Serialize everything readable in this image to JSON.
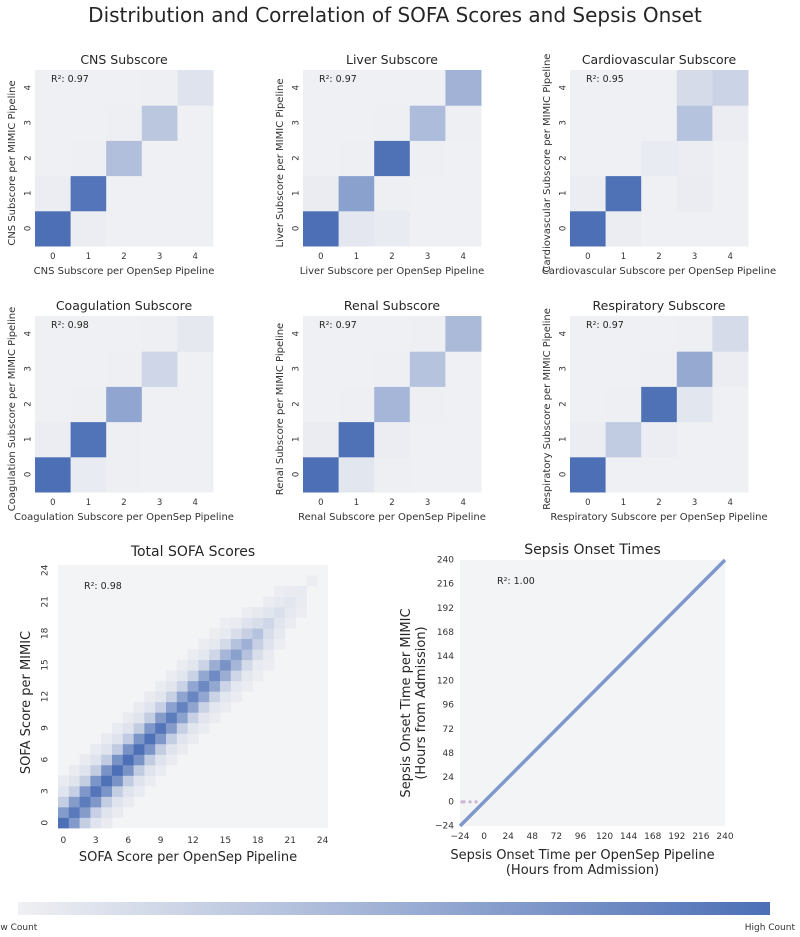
{
  "figure": {
    "suptitle": "Distribution and Correlation of SOFA Scores and Sepsis Onset",
    "colormap": {
      "low": "#eff0f3",
      "high": "#4c6fb6",
      "grid": "#f3f4f6"
    },
    "colorbar": {
      "low_label": "Low Count",
      "high_label": "High Count"
    }
  },
  "chart_data": [
    {
      "type": "heatmap",
      "id": "cns",
      "title": "CNS Subscore",
      "xlabel": "CNS Subscore per OpenSep Pipeline",
      "ylabel": "CNS Subscore per MIMIC Pipeline",
      "annotation": "R²: 0.97",
      "x_ticks": [
        "0",
        "1",
        "2",
        "3",
        "4"
      ],
      "y_ticks": [
        "0",
        "1",
        "2",
        "3",
        "4"
      ],
      "matrix": [
        [
          1.0,
          0.02,
          0.0,
          0.0,
          0.0
        ],
        [
          0.02,
          0.95,
          0.0,
          0.0,
          0.0
        ],
        [
          0.0,
          0.01,
          0.38,
          0.0,
          0.0
        ],
        [
          0.0,
          0.0,
          0.01,
          0.32,
          0.0
        ],
        [
          0.0,
          0.0,
          0.0,
          0.01,
          0.1
        ]
      ]
    },
    {
      "type": "heatmap",
      "id": "liver",
      "title": "Liver Subscore",
      "xlabel": "Liver Subscore per OpenSep Pipeline",
      "ylabel": "Liver Subscore per MIMIC Pipeline",
      "annotation": "R²: 0.97",
      "x_ticks": [
        "0",
        "1",
        "2",
        "3",
        "4"
      ],
      "y_ticks": [
        "0",
        "1",
        "2",
        "3",
        "4"
      ],
      "matrix": [
        [
          1.0,
          0.07,
          0.04,
          0.0,
          0.0
        ],
        [
          0.03,
          0.62,
          0.01,
          0.0,
          0.0
        ],
        [
          0.0,
          0.01,
          0.98,
          0.01,
          0.0
        ],
        [
          0.0,
          0.0,
          0.01,
          0.4,
          0.01
        ],
        [
          0.0,
          0.0,
          0.0,
          0.0,
          0.48
        ]
      ]
    },
    {
      "type": "heatmap",
      "id": "cardio",
      "title": "Cardiovascular Subscore",
      "xlabel": "Cardiovascular Subscore per OpenSep Pipeline",
      "ylabel": "Cardiovascular Subscore per MIMIC Pipeline",
      "annotation": "R²: 0.95",
      "x_ticks": [
        "0",
        "1",
        "2",
        "3",
        "4"
      ],
      "y_ticks": [
        "0",
        "1",
        "2",
        "3",
        "4"
      ],
      "matrix": [
        [
          1.0,
          0.02,
          0.0,
          0.0,
          0.0
        ],
        [
          0.02,
          0.98,
          0.0,
          0.03,
          0.0
        ],
        [
          0.0,
          0.0,
          0.04,
          0.02,
          0.0
        ],
        [
          0.0,
          0.0,
          0.0,
          0.35,
          0.02
        ],
        [
          0.0,
          0.0,
          0.0,
          0.16,
          0.22
        ]
      ]
    },
    {
      "type": "heatmap",
      "id": "coag",
      "title": "Coagulation Subscore",
      "xlabel": "Coagulation Subscore per OpenSep Pipeline",
      "ylabel": "Coagulation Subscore per MIMIC Pipeline",
      "annotation": "R²: 0.98",
      "x_ticks": [
        "0",
        "1",
        "2",
        "3",
        "4"
      ],
      "y_ticks": [
        "0",
        "1",
        "2",
        "3",
        "4"
      ],
      "matrix": [
        [
          1.0,
          0.04,
          0.01,
          0.0,
          0.0
        ],
        [
          0.02,
          0.97,
          0.01,
          0.0,
          0.0
        ],
        [
          0.0,
          0.01,
          0.58,
          0.0,
          0.0
        ],
        [
          0.0,
          0.0,
          0.01,
          0.2,
          0.0
        ],
        [
          0.0,
          0.0,
          0.0,
          0.01,
          0.06
        ]
      ]
    },
    {
      "type": "heatmap",
      "id": "renal",
      "title": "Renal Subscore",
      "xlabel": "Renal Subscore per OpenSep Pipeline",
      "ylabel": "Renal Subscore per MIMIC Pipeline",
      "annotation": "R²: 0.97",
      "x_ticks": [
        "0",
        "1",
        "2",
        "3",
        "4"
      ],
      "y_ticks": [
        "0",
        "1",
        "2",
        "3",
        "4"
      ],
      "matrix": [
        [
          1.0,
          0.08,
          0.01,
          0.0,
          0.0
        ],
        [
          0.03,
          0.98,
          0.02,
          0.0,
          0.0
        ],
        [
          0.0,
          0.01,
          0.45,
          0.01,
          0.0
        ],
        [
          0.0,
          0.0,
          0.01,
          0.35,
          0.0
        ],
        [
          0.0,
          0.0,
          0.0,
          0.01,
          0.42
        ]
      ]
    },
    {
      "type": "heatmap",
      "id": "resp",
      "title": "Respiratory Subscore",
      "xlabel": "Respiratory Subscore per OpenSep Pipeline",
      "ylabel": "Respiratory Subscore per MIMIC Pipeline",
      "annotation": "R²: 0.97",
      "x_ticks": [
        "0",
        "1",
        "2",
        "3",
        "4"
      ],
      "y_ticks": [
        "0",
        "1",
        "2",
        "3",
        "4"
      ],
      "matrix": [
        [
          1.0,
          0.0,
          0.0,
          0.0,
          0.0
        ],
        [
          0.02,
          0.28,
          0.02,
          0.0,
          0.0
        ],
        [
          0.0,
          0.01,
          0.98,
          0.08,
          0.0
        ],
        [
          0.0,
          0.0,
          0.01,
          0.55,
          0.02
        ],
        [
          0.0,
          0.0,
          0.0,
          0.01,
          0.16
        ]
      ]
    },
    {
      "type": "heatmap",
      "id": "total",
      "title": "Total SOFA Scores",
      "xlabel": "SOFA Score per OpenSep Pipeline",
      "ylabel": "SOFA Score per MIMIC",
      "annotation": "R²: 0.98",
      "x_range": [
        0,
        24
      ],
      "y_range": [
        0,
        24
      ],
      "x_ticks": [
        "0",
        "3",
        "6",
        "9",
        "12",
        "15",
        "18",
        "21",
        "24"
      ],
      "y_ticks": [
        "0",
        "3",
        "6",
        "9",
        "12",
        "15",
        "18",
        "21",
        "24"
      ],
      "diagonal_intensity": [
        1.0,
        0.92,
        0.9,
        0.95,
        0.98,
        1.0,
        1.0,
        1.0,
        0.98,
        0.95,
        0.9,
        0.85,
        0.82,
        0.8,
        0.78,
        0.72,
        0.62,
        0.5,
        0.35,
        0.2,
        0.12,
        0.08,
        0.05,
        0.02,
        0.0
      ]
    },
    {
      "type": "scatter",
      "id": "onset",
      "title": "Sepsis Onset Times",
      "xlabel_lines": [
        "Sepsis Onset Time per OpenSep Pipeline",
        "(Hours from Admission)"
      ],
      "ylabel_lines": [
        "Sepsis Onset Time per MIMIC",
        "(Hours from Admission)"
      ],
      "annotation": "R²: 1.00",
      "x_range": [
        -24,
        240
      ],
      "y_range": [
        -24,
        240
      ],
      "x_ticks": [
        "−24",
        "0",
        "24",
        "48",
        "72",
        "96",
        "120",
        "144",
        "168",
        "192",
        "216",
        "240"
      ],
      "y_ticks": [
        "−24",
        "0",
        "24",
        "48",
        "72",
        "96",
        "120",
        "144",
        "168",
        "192",
        "216",
        "240"
      ],
      "line": [
        [
          -24,
          -24
        ],
        [
          240,
          240
        ]
      ],
      "outliers": [
        [
          -22,
          0
        ],
        [
          -20,
          0
        ],
        [
          -14,
          0
        ],
        [
          -8,
          0
        ]
      ]
    }
  ]
}
